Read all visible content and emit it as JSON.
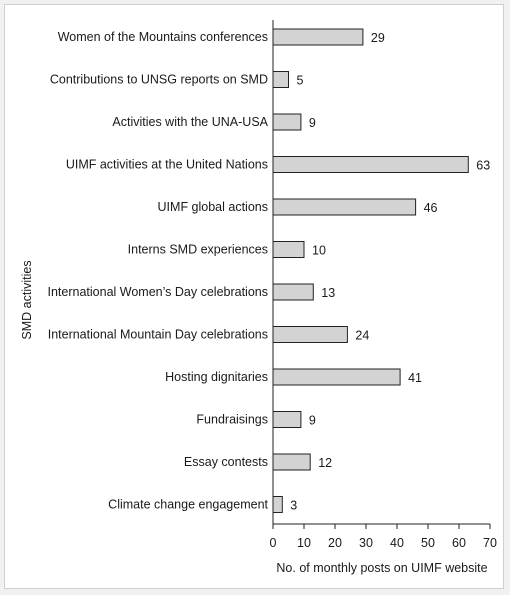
{
  "chart_data": {
    "type": "bar",
    "orientation": "horizontal",
    "categories": [
      "Women of the Mountains conferences",
      "Contributions to UNSG reports on SMD",
      "Activities with the UNA-USA",
      "UIMF activities at the United Nations",
      "UIMF global actions",
      "Interns SMD experiences",
      "International Women’s Day celebrations",
      "International Mountain Day celebrations",
      "Hosting dignitaries",
      "Fundraisings",
      "Essay contests",
      "Climate change engagement"
    ],
    "values": [
      29,
      5,
      9,
      63,
      46,
      10,
      13,
      24,
      41,
      9,
      12,
      3
    ],
    "title": "",
    "xlabel": "No. of monthly posts on UIMF website",
    "ylabel": "SMD activities",
    "xlim": [
      0,
      70
    ],
    "xticks": [
      0,
      10,
      20,
      30,
      40,
      50,
      60,
      70
    ],
    "grid": false,
    "legend": "none",
    "bar_color": "#d3d3d3",
    "bar_edge_color": "#222222"
  }
}
